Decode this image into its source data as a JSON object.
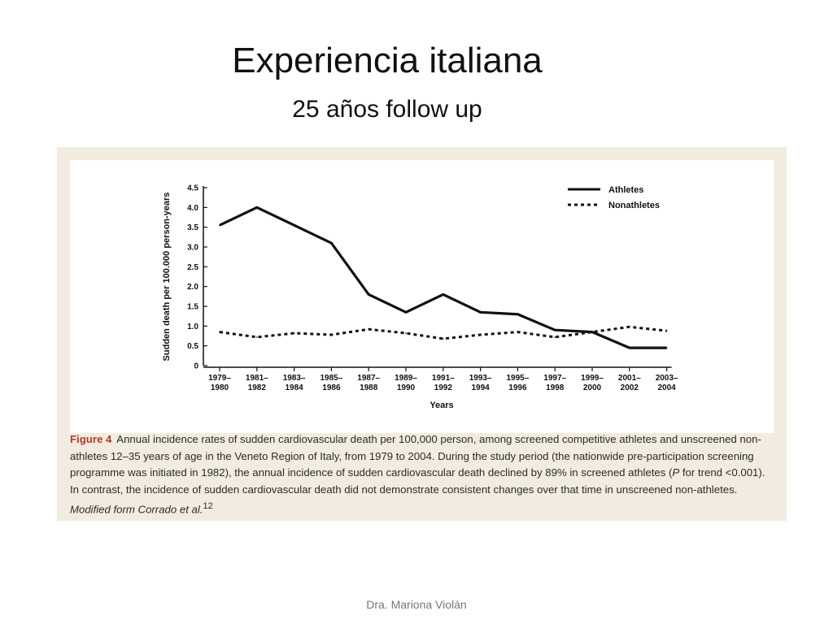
{
  "slide": {
    "title": "Experiencia italiana",
    "subtitle": "25 años follow up",
    "footer": "Dra. Mariona Violán"
  },
  "figure": {
    "label": "Figure 4",
    "caption_main": "Annual incidence rates of sudden cardiovascular death per 100,000 person, among screened competitive athletes and unscreened non-athletes 12–35 years of age in the Veneto Region of Italy, from 1979 to 2004. During the study period (the nationwide pre-participation screening programme was initiated in 1982), the annual incidence of sudden cardiovascular death declined by 89% in screened athletes (",
    "caption_p": "P",
    "caption_mid": " for trend <0.001). In contrast, the incidence of sudden cardiovascular death did not demonstrate consistent changes over that time in unscreened non-athletes. ",
    "caption_ital": "Modified form Corrado et al.",
    "caption_ref": "12"
  },
  "chart_data": {
    "type": "line",
    "xlabel": "Years",
    "ylabel": "Sudden death per 100.000 person-years",
    "ylim": [
      0,
      4.5
    ],
    "yticks": [
      "0",
      "0.5",
      "1.0",
      "1.5",
      "2.0",
      "2.5",
      "3.0",
      "3.5",
      "4.0",
      "4.5"
    ],
    "categories": [
      [
        "1979–",
        "1980"
      ],
      [
        "1981–",
        "1982"
      ],
      [
        "1983–",
        "1984"
      ],
      [
        "1985–",
        "1986"
      ],
      [
        "1987–",
        "1988"
      ],
      [
        "1989–",
        "1990"
      ],
      [
        "1991–",
        "1992"
      ],
      [
        "1993–",
        "1994"
      ],
      [
        "1995–",
        "1996"
      ],
      [
        "1997–",
        "1998"
      ],
      [
        "1999–",
        "2000"
      ],
      [
        "2001–",
        "2002"
      ],
      [
        "2003–",
        "2004"
      ]
    ],
    "series": [
      {
        "name": "Athletes",
        "style": "solid",
        "values": [
          3.55,
          4.0,
          3.55,
          3.1,
          1.8,
          1.35,
          1.8,
          1.35,
          1.3,
          0.9,
          0.85,
          0.45,
          0.45
        ]
      },
      {
        "name": "Nonathletes",
        "style": "dotted",
        "values": [
          0.85,
          0.72,
          0.82,
          0.78,
          0.92,
          0.82,
          0.68,
          0.78,
          0.85,
          0.72,
          0.85,
          0.98,
          0.88
        ]
      }
    ],
    "legend_position": "top-right",
    "grid": false,
    "colors": {
      "line": "#111111",
      "panel": "#f1ecdf",
      "figure_label": "#b23a2a"
    }
  }
}
